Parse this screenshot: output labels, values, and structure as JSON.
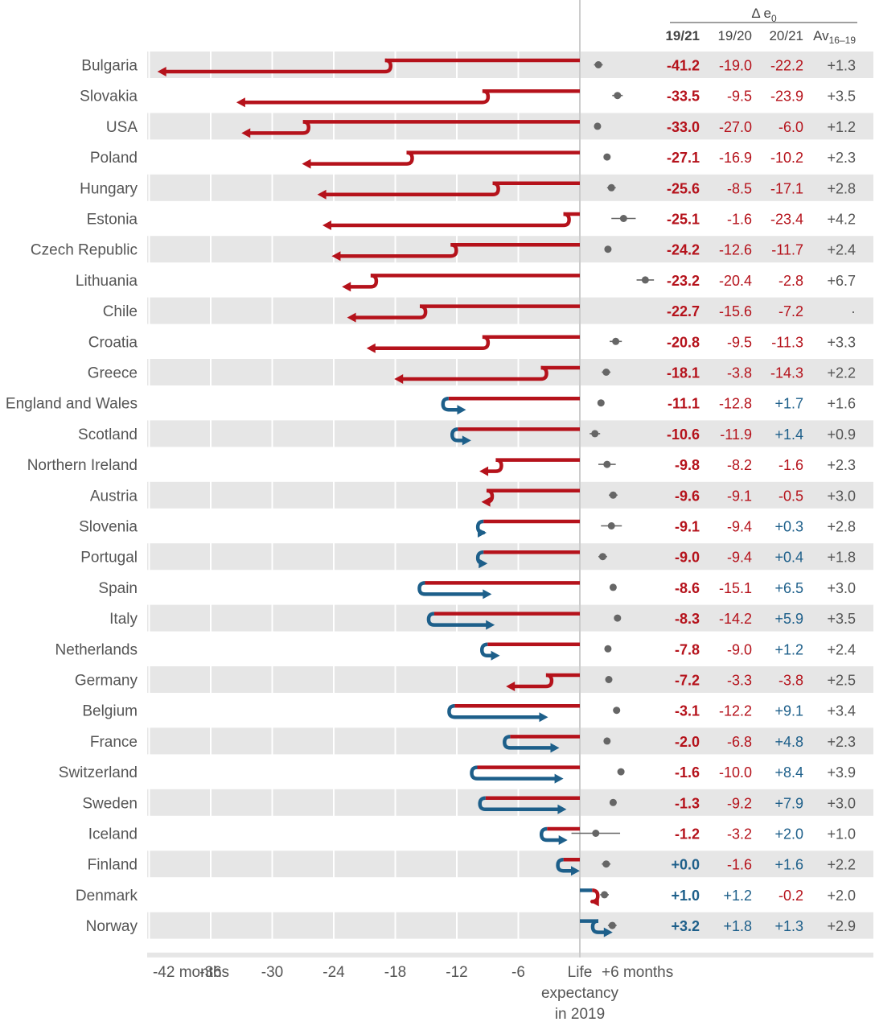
{
  "chart_data": {
    "type": "bar",
    "header": {
      "group_label": "Δ e",
      "group_label_sub": "0",
      "col_1921": "19/21",
      "col_1920": "19/20",
      "col_2021": "20/21",
      "col_av": "Av",
      "col_av_sub": "16–19"
    },
    "x_axis": {
      "unit": "months",
      "ticks": [
        {
          "value": -42,
          "label": "-42 months"
        },
        {
          "value": -36,
          "label": "-36"
        },
        {
          "value": -30,
          "label": "-30"
        },
        {
          "value": -24,
          "label": "-24"
        },
        {
          "value": -18,
          "label": "-18"
        },
        {
          "value": -12,
          "label": "-12"
        },
        {
          "value": -6,
          "label": "-6"
        },
        {
          "value": 0,
          "label": "Life"
        },
        {
          "value": 6,
          "label": "+6 months"
        }
      ],
      "reference_label_line2": "expectancy",
      "reference_label_line3": "in 2019",
      "xlim": [
        -43.5,
        7
      ]
    },
    "colors": {
      "decline": "#b5121b",
      "increase": "#1d5f8a",
      "neutral": "#666666",
      "band": "#e6e6e6"
    },
    "rows": [
      {
        "country": "Bulgaria",
        "d1921": "-41.2",
        "d1920": "-19.0",
        "d2021": "-22.2",
        "av": "+1.3",
        "dot": 1.3,
        "err": 0.5,
        "v1920": -19.0,
        "v1921": -41.2
      },
      {
        "country": "Slovakia",
        "d1921": "-33.5",
        "d1920": "-9.5",
        "d2021": "-23.9",
        "av": "+3.5",
        "dot": 3.5,
        "err": 0.6,
        "v1920": -9.5,
        "v1921": -33.5
      },
      {
        "country": "USA",
        "d1921": "-33.0",
        "d1920": "-27.0",
        "d2021": "-6.0",
        "av": "+1.2",
        "dot": 1.2,
        "err": 0.2,
        "v1920": -27.0,
        "v1921": -33.0
      },
      {
        "country": "Poland",
        "d1921": "-27.1",
        "d1920": "-16.9",
        "d2021": "-10.2",
        "av": "+2.3",
        "dot": 2.3,
        "err": 0.2,
        "v1920": -16.9,
        "v1921": -27.1
      },
      {
        "country": "Hungary",
        "d1921": "-25.6",
        "d1920": "-8.5",
        "d2021": "-17.1",
        "av": "+2.8",
        "dot": 2.8,
        "err": 0.5,
        "v1920": -8.5,
        "v1921": -25.6
      },
      {
        "country": "Estonia",
        "d1921": "-25.1",
        "d1920": "-1.6",
        "d2021": "-23.4",
        "av": "+4.2",
        "dot": 4.2,
        "err": 1.4,
        "v1920": -1.6,
        "v1921": -25.1
      },
      {
        "country": "Czech Republic",
        "d1921": "-24.2",
        "d1920": "-12.6",
        "d2021": "-11.7",
        "av": "+2.4",
        "dot": 2.4,
        "err": 0.4,
        "v1920": -12.6,
        "v1921": -24.2
      },
      {
        "country": "Lithuania",
        "d1921": "-23.2",
        "d1920": "-20.4",
        "d2021": "-2.8",
        "av": "+6.7",
        "dot": 6.7,
        "err": 1.0,
        "v1920": -20.4,
        "v1921": -23.2
      },
      {
        "country": "Chile",
        "d1921": "-22.7",
        "d1920": "-15.6",
        "d2021": "-7.2",
        "av": "·",
        "dot": null,
        "err": 0,
        "v1920": -15.6,
        "v1921": -22.7
      },
      {
        "country": "Croatia",
        "d1921": "-20.8",
        "d1920": "-9.5",
        "d2021": "-11.3",
        "av": "+3.3",
        "dot": 3.3,
        "err": 0.7,
        "v1920": -9.5,
        "v1921": -20.8
      },
      {
        "country": "Greece",
        "d1921": "-18.1",
        "d1920": "-3.8",
        "d2021": "-14.3",
        "av": "+2.2",
        "dot": 2.2,
        "err": 0.5,
        "v1920": -3.8,
        "v1921": -18.1
      },
      {
        "country": "England and Wales",
        "d1921": "-11.1",
        "d1920": "-12.8",
        "d2021": "+1.7",
        "av": "+1.6",
        "dot": 1.6,
        "err": 0.2,
        "v1920": -12.8,
        "v1921": -11.1
      },
      {
        "country": "Scotland",
        "d1921": "-10.6",
        "d1920": "-11.9",
        "d2021": "+1.4",
        "av": "+0.9",
        "dot": 0.9,
        "err": 0.6,
        "v1920": -11.9,
        "v1921": -10.6
      },
      {
        "country": "Northern Ireland",
        "d1921": "-9.8",
        "d1920": "-8.2",
        "d2021": "-1.6",
        "av": "+2.3",
        "dot": 2.3,
        "err": 1.0,
        "v1920": -8.2,
        "v1921": -9.8
      },
      {
        "country": "Austria",
        "d1921": "-9.6",
        "d1920": "-9.1",
        "d2021": "-0.5",
        "av": "+3.0",
        "dot": 3.0,
        "err": 0.5,
        "v1920": -9.1,
        "v1921": -9.6
      },
      {
        "country": "Slovenia",
        "d1921": "-9.1",
        "d1920": "-9.4",
        "d2021": "+0.3",
        "av": "+2.8",
        "dot": 2.8,
        "err": 1.2,
        "v1920": -9.4,
        "v1921": -9.1
      },
      {
        "country": "Portugal",
        "d1921": "-9.0",
        "d1920": "-9.4",
        "d2021": "+0.4",
        "av": "+1.8",
        "dot": 1.8,
        "err": 0.5,
        "v1920": -9.4,
        "v1921": -9.0
      },
      {
        "country": "Spain",
        "d1921": "-8.6",
        "d1920": "-15.1",
        "d2021": "+6.5",
        "av": "+3.0",
        "dot": 3.0,
        "err": 0.2,
        "v1920": -15.1,
        "v1921": -8.6
      },
      {
        "country": "Italy",
        "d1921": "-8.3",
        "d1920": "-14.2",
        "d2021": "+5.9",
        "av": "+3.5",
        "dot": 3.5,
        "err": 0.2,
        "v1920": -14.2,
        "v1921": -8.3
      },
      {
        "country": "Netherlands",
        "d1921": "-7.8",
        "d1920": "-9.0",
        "d2021": "+1.2",
        "av": "+2.4",
        "dot": 2.4,
        "err": 0.2,
        "v1920": -9.0,
        "v1921": -7.8
      },
      {
        "country": "Germany",
        "d1921": "-7.2",
        "d1920": "-3.3",
        "d2021": "-3.8",
        "av": "+2.5",
        "dot": 2.5,
        "err": 0.2,
        "v1920": -3.3,
        "v1921": -7.2
      },
      {
        "country": "Belgium",
        "d1921": "-3.1",
        "d1920": "-12.2",
        "d2021": "+9.1",
        "av": "+3.4",
        "dot": 3.4,
        "err": 0.4,
        "v1920": -12.2,
        "v1921": -3.1
      },
      {
        "country": "France",
        "d1921": "-2.0",
        "d1920": "-6.8",
        "d2021": "+4.8",
        "av": "+2.3",
        "dot": 2.3,
        "err": 0.2,
        "v1920": -6.8,
        "v1921": -2.0
      },
      {
        "country": "Switzerland",
        "d1921": "-1.6",
        "d1920": "-10.0",
        "d2021": "+8.4",
        "av": "+3.9",
        "dot": 3.9,
        "err": 0.4,
        "v1920": -10.0,
        "v1921": -1.6
      },
      {
        "country": "Sweden",
        "d1921": "-1.3",
        "d1920": "-9.2",
        "d2021": "+7.9",
        "av": "+3.0",
        "dot": 3.0,
        "err": 0.4,
        "v1920": -9.2,
        "v1921": -1.3
      },
      {
        "country": "Iceland",
        "d1921": "-1.2",
        "d1920": "-3.2",
        "d2021": "+2.0",
        "av": "+1.0",
        "dot": 1.0,
        "err": 2.8,
        "v1920": -3.2,
        "v1921": -1.2
      },
      {
        "country": "Finland",
        "d1921": "+0.0",
        "d1920": "-1.6",
        "d2021": "+1.6",
        "av": "+2.2",
        "dot": 2.2,
        "err": 0.5,
        "v1920": -1.6,
        "v1921": 0.0
      },
      {
        "country": "Denmark",
        "d1921": "+1.0",
        "d1920": "+1.2",
        "d2021": "-0.2",
        "av": "+2.0",
        "dot": 2.0,
        "err": 0.5,
        "v1920": 1.2,
        "v1921": 1.0
      },
      {
        "country": "Norway",
        "d1921": "+3.2",
        "d1920": "+1.8",
        "d2021": "+1.3",
        "av": "+2.9",
        "dot": 2.9,
        "err": 0.5,
        "v1920": 1.8,
        "v1921": 3.2
      }
    ]
  }
}
